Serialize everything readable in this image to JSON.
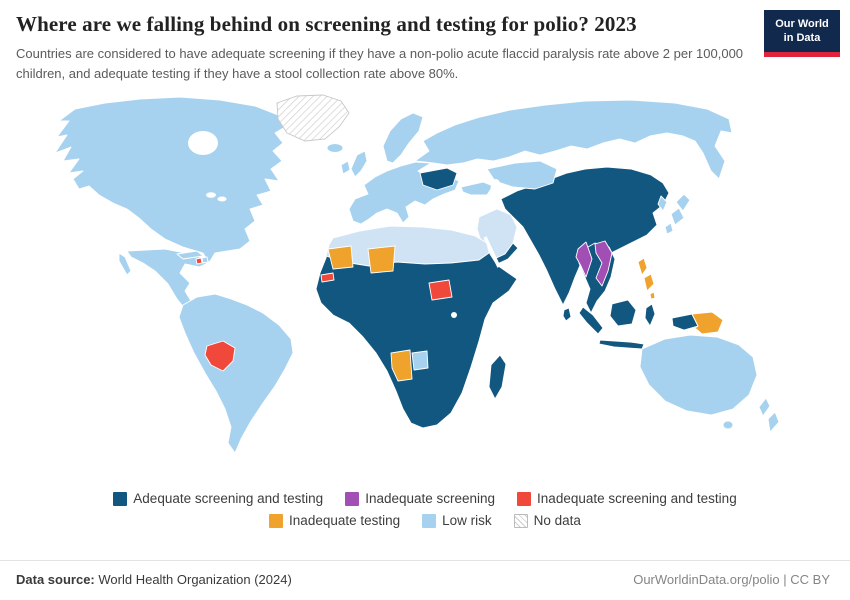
{
  "header": {
    "title": "Where are we falling behind on screening and testing for polio? 2023",
    "subtitle": "Countries are considered to have adequate screening if they have a non-polio acute flaccid paralysis rate above 2 per 100,000 children, and adequate testing if they have a stool collection rate above 80%.",
    "logo": {
      "line1": "Our World",
      "line2": "in Data"
    }
  },
  "legend": {
    "rows": [
      [
        {
          "key": "adequate",
          "label": "Adequate screening and testing"
        },
        {
          "key": "inadequate_screening",
          "label": "Inadequate screening"
        },
        {
          "key": "inadequate_screening_and_testing",
          "label": "Inadequate screening and testing"
        }
      ],
      [
        {
          "key": "inadequate_testing",
          "label": "Inadequate testing"
        },
        {
          "key": "low_risk",
          "label": "Low risk"
        },
        {
          "key": "no_data",
          "label": "No data",
          "hatch": true
        }
      ]
    ]
  },
  "footer": {
    "source_label": "Data source:",
    "source_value": "World Health Organization (2024)",
    "attribution": "OurWorldinData.org/polio | CC BY"
  },
  "chart_data": {
    "type": "heatmap",
    "subtype": "world_choropleth_map",
    "title": "Where are we falling behind on screening and testing for polio?",
    "year": 2023,
    "legend_position": "bottom",
    "categories": [
      "Adequate screening and testing",
      "Inadequate screening",
      "Inadequate screening and testing",
      "Inadequate testing",
      "Low risk",
      "No data"
    ],
    "colors": {
      "adequate": "#12577f",
      "inadequate_screening": "#a14fb5",
      "inadequate_screening_and_testing": "#f1483c",
      "inadequate_testing": "#efa22c",
      "low_risk": "#a7d2ef",
      "low_risk_pale": "#cfe3f4"
    },
    "region_assignments": {
      "adequate_screening_and_testing": [
        "Most of Sub-Saharan Africa",
        "Madagascar",
        "Yemen",
        "Iran",
        "Afghanistan",
        "Pakistan",
        "India",
        "Sri Lanka",
        "China",
        "Mongolia",
        "Ukraine",
        "Thailand",
        "Cambodia",
        "Indonesia",
        "Malaysia"
      ],
      "inadequate_screening": [
        "Myanmar",
        "Laos",
        "Vietnam"
      ],
      "inadequate_screening_and_testing": [
        "Haiti",
        "Bolivia",
        "Senegal",
        "South Sudan"
      ],
      "inadequate_testing": [
        "Mauritania",
        "Niger",
        "Namibia",
        "Philippines",
        "Papua New Guinea"
      ],
      "low_risk": [
        "Canada",
        "United States",
        "Mexico",
        "Brazil",
        "Argentina",
        "Europe",
        "Russia",
        "Kazakhstan",
        "Turkey",
        "Saudi Arabia",
        "North Africa",
        "Botswana",
        "Japan",
        "South Korea",
        "Australia",
        "New Zealand"
      ],
      "no_data": [
        "Greenland"
      ]
    }
  }
}
